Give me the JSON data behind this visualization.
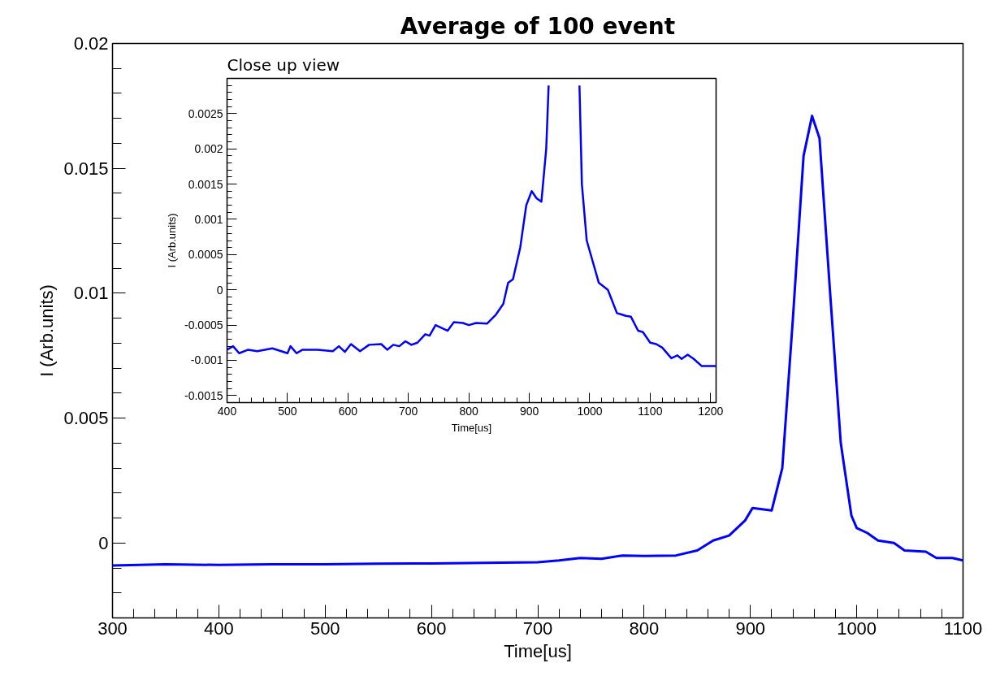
{
  "chart_data": [
    {
      "type": "line",
      "title": "Average of 100 event",
      "xlabel": "Time[us]",
      "ylabel": "I (Arb.units)",
      "xlim": [
        300,
        1100
      ],
      "ylim": [
        -0.003,
        0.02
      ],
      "xticks": [
        300,
        400,
        500,
        600,
        700,
        800,
        900,
        1000,
        1100
      ],
      "yticks": [
        0,
        0.005,
        0.01,
        0.015,
        0.02
      ],
      "grid": false,
      "x": [
        300,
        350,
        400,
        450,
        500,
        550,
        600,
        650,
        700,
        720,
        740,
        760,
        780,
        800,
        830,
        850,
        865,
        880,
        895,
        902,
        920,
        930,
        940,
        950,
        958,
        965,
        975,
        985,
        995,
        1000,
        1010,
        1020,
        1035,
        1045,
        1065,
        1075,
        1090,
        1100
      ],
      "series": [
        {
          "color": "#0000ff",
          "values": [
            -0.0009,
            -0.00085,
            -0.00088,
            -0.00085,
            -0.00085,
            -0.00083,
            -0.00082,
            -0.0008,
            -0.00077,
            -0.0007,
            -0.0006,
            -0.00063,
            -0.0005,
            -0.00052,
            -0.0005,
            -0.0003,
            0.0001,
            0.0003,
            0.0009,
            0.0014,
            0.0013,
            0.003,
            0.009,
            0.0155,
            0.0171,
            0.0162,
            0.01,
            0.004,
            0.0011,
            0.0006,
            0.0004,
            0.0001,
            0.0,
            -0.0003,
            -0.00035,
            -0.0006,
            -0.0006,
            -0.0007
          ]
        }
      ]
    },
    {
      "type": "line",
      "title": "Close up view",
      "xlabel": "Time[us]",
      "ylabel": "I (Arb.units)",
      "xlim": [
        400,
        1209
      ],
      "ylim": [
        -0.0016,
        0.003
      ],
      "xticks": [
        400,
        500,
        600,
        700,
        800,
        900,
        1000,
        1100,
        1200
      ],
      "yticks": [
        -0.0015,
        -0.001,
        -0.0005,
        0,
        0.0005,
        0.001,
        0.0015,
        0.002,
        0.0025
      ],
      "grid": false,
      "x": [
        400,
        410,
        420,
        435,
        450,
        475,
        500,
        505,
        515,
        525,
        550,
        575,
        585,
        595,
        605,
        620,
        635,
        655,
        665,
        675,
        685,
        695,
        705,
        715,
        728,
        735,
        745,
        765,
        775,
        790,
        800,
        812,
        830,
        845,
        857,
        865,
        873,
        885,
        895,
        904,
        912,
        920,
        928,
        932,
        958,
        983,
        987,
        995,
        1005,
        1015,
        1030,
        1045,
        1060,
        1068,
        1080,
        1088,
        1100,
        1110,
        1120,
        1135,
        1145,
        1152,
        1162,
        1172,
        1185,
        1209
      ],
      "series": [
        {
          "color": "#0000ff",
          "values": [
            -0.00085,
            -0.0008,
            -0.0009,
            -0.00085,
            -0.00087,
            -0.00083,
            -0.0009,
            -0.0008,
            -0.0009,
            -0.00085,
            -0.00085,
            -0.00087,
            -0.0008,
            -0.00088,
            -0.00077,
            -0.00087,
            -0.00078,
            -0.00077,
            -0.00085,
            -0.00078,
            -0.0008,
            -0.00073,
            -0.00078,
            -0.00075,
            -0.00063,
            -0.00065,
            -0.0005,
            -0.00058,
            -0.00046,
            -0.00047,
            -0.0005,
            -0.00047,
            -0.00048,
            -0.00035,
            -0.0002,
            0.0001,
            0.00015,
            0.0006,
            0.0012,
            0.0014,
            0.0013,
            0.00125,
            0.002,
            0.0029,
            null,
            0.0029,
            0.0015,
            0.0007,
            0.0004,
            0.0001,
            0.0,
            -0.00033,
            -0.00037,
            -0.00038,
            -0.00058,
            -0.0006,
            -0.00075,
            -0.00077,
            -0.00082,
            -0.00097,
            -0.00093,
            -0.00098,
            -0.00092,
            -0.00098,
            -0.00108,
            -0.00108
          ]
        }
      ]
    }
  ]
}
